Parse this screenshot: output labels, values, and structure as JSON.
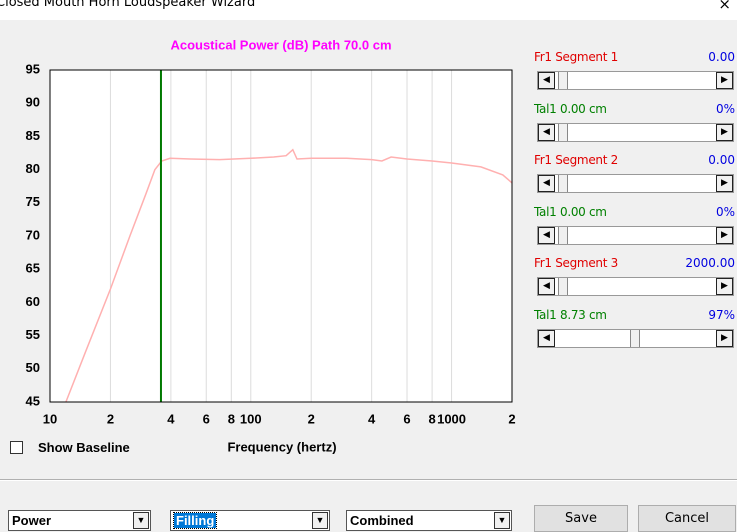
{
  "window": {
    "title": "Closed Mouth Horn Loudspeaker Wizard",
    "close": "×"
  },
  "chart_data": {
    "type": "line",
    "title": "Acoustical Power (dB)   Path 70.0 cm",
    "title_color": "#ff00ff",
    "x_label": "Frequency (hertz)",
    "xscale": "log",
    "xlim": [
      10,
      2000
    ],
    "ylim": [
      45,
      95
    ],
    "xticks": [
      10,
      {
        "value": 20,
        "label": "2"
      },
      {
        "value": 40,
        "label": "4"
      },
      {
        "value": 60,
        "label": "6"
      },
      {
        "value": 80,
        "label": "8"
      },
      100,
      {
        "value": 200,
        "label": "2"
      },
      {
        "value": 400,
        "label": "4"
      },
      {
        "value": 600,
        "label": "6"
      },
      {
        "value": 800,
        "label": "8"
      },
      1000,
      {
        "value": 2000,
        "label": "2"
      }
    ],
    "yticks": [
      45,
      50,
      55,
      60,
      65,
      70,
      75,
      80,
      85,
      90,
      95
    ],
    "grid": "x",
    "vline": {
      "x": 35.7,
      "color": "#007a00"
    },
    "series": [
      {
        "color": "#ffb0b0",
        "x": [
          12,
          15,
          20,
          25,
          30,
          33.3,
          36,
          39.6,
          50,
          70,
          100,
          130,
          150,
          162,
          170,
          200,
          300,
          400,
          450,
          500,
          600,
          800,
          1000,
          1400,
          1800,
          2000
        ],
        "values": [
          45,
          52.5,
          62,
          70,
          76.3,
          80,
          81.3,
          81.7,
          81.6,
          81.5,
          81.7,
          81.9,
          82.1,
          83,
          81.6,
          81.7,
          81.7,
          81.5,
          81.3,
          81.9,
          81.6,
          81.3,
          81,
          80.4,
          79.2,
          78
        ]
      }
    ]
  },
  "sliders": [
    {
      "label": "Fr1  Segment 1",
      "value": "0.00",
      "color": "#e00000"
    },
    {
      "label": "Tal1  0.00 cm",
      "value": "0%",
      "color": "#008000"
    },
    {
      "label": "Fr1  Segment 2",
      "value": "0.00",
      "color": "#e00000"
    },
    {
      "label": "Tal1  0.00 cm",
      "value": "0%",
      "color": "#008000"
    },
    {
      "label": "Fr1  Segment 3",
      "value": "2000.00",
      "color": "#e00000"
    },
    {
      "label": "Tal1  8.73 cm",
      "value": "97%",
      "color": "#008000"
    }
  ],
  "controls": {
    "checkbox": "Show Baseline",
    "dropdowns": [
      "Power",
      "Filling",
      "Combined"
    ],
    "buttons": [
      "Save",
      "Cancel"
    ]
  }
}
